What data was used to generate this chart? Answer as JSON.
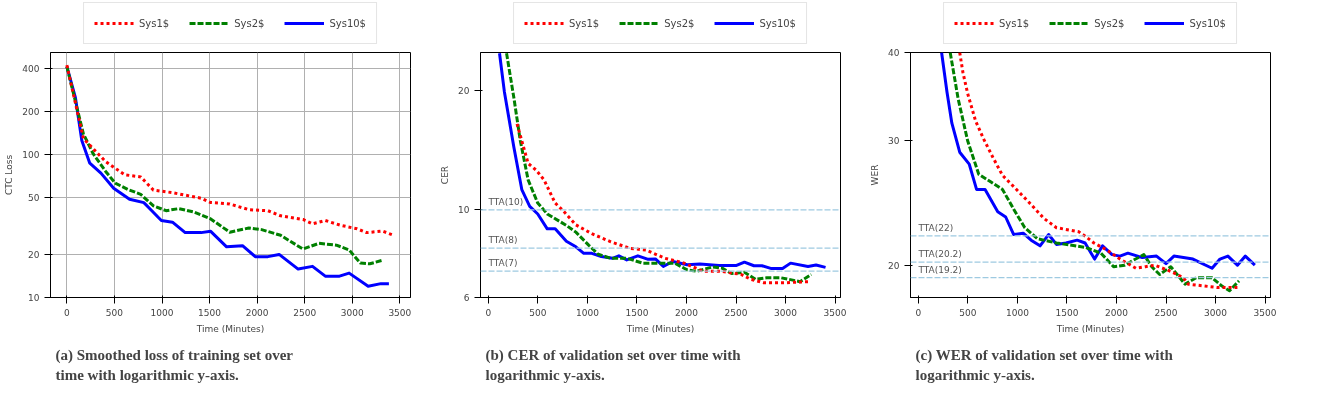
{
  "chart_data": [
    {
      "type": "line",
      "xlabel": "Time (Minutes)",
      "ylabel": "CTC Loss",
      "log": "y",
      "grid": true,
      "legend": "top",
      "xlim": [
        -172,
        3612
      ],
      "ylim": [
        10,
        515
      ],
      "xticks": [
        0,
        500,
        1000,
        1500,
        2000,
        2500,
        3000,
        3500
      ],
      "yticks": [
        10,
        20,
        50,
        100,
        200,
        400
      ],
      "annotations": [
        "(a) Smoothed loss of training set over time with logarithmic y-axis."
      ],
      "series": [
        {
          "name": "Sys1$",
          "color": "#ff0000",
          "line_style": "dotted",
          "x": [
            0,
            174,
            274,
            408,
            508,
            609,
            776,
            910,
            1110,
            1411,
            1512,
            1712,
            1913,
            2114,
            2247,
            2482,
            2582,
            2716,
            2883,
            3050,
            3150,
            3318,
            3435
          ],
          "values": [
            420,
            129,
            110,
            89,
            80,
            72,
            69.6,
            56.3,
            54.0,
            49.4,
            46.1,
            45,
            41.1,
            40.4,
            37.2,
            35.1,
            32.7,
            34.5,
            31.9,
            30.2,
            28.4,
            29.1,
            27.2
          ]
        },
        {
          "name": "Sys2$",
          "color": "#008000",
          "line_style": "dashed",
          "x": [
            0,
            174,
            274,
            408,
            508,
            642,
            776,
            910,
            1043,
            1177,
            1344,
            1512,
            1712,
            1913,
            2047,
            2247,
            2482,
            2649,
            2833,
            2967,
            3084,
            3184,
            3318
          ],
          "values": [
            410,
            139,
            101.6,
            76,
            63,
            56.9,
            52.6,
            43.7,
            40.4,
            41.8,
            39.4,
            35.4,
            28.6,
            30.6,
            29.8,
            27.2,
            21.8,
            23.9,
            23.2,
            21.5,
            17.4,
            17.2,
            18.2
          ]
        },
        {
          "name": "Sys10$",
          "color": "#0000ff",
          "line_style": "solid",
          "x": [
            0,
            90,
            157,
            241,
            358,
            492,
            659,
            809,
            893,
            993,
            1110,
            1244,
            1411,
            1512,
            1679,
            1846,
            1980,
            2114,
            2231,
            2431,
            2582,
            2716,
            2866,
            2967,
            3167,
            3301,
            3385
          ],
          "values": [
            410,
            249,
            125,
            86.7,
            74,
            58,
            48.6,
            46,
            40.4,
            34.5,
            33.6,
            28.4,
            28.4,
            29,
            22.6,
            23,
            19.3,
            19.3,
            20,
            15.8,
            16.5,
            14.1,
            14.1,
            14.8,
            12.0,
            12.5,
            12.5
          ]
        }
      ]
    },
    {
      "type": "line",
      "xlabel": "Time (Minutes)",
      "ylabel": "CER",
      "log": "y",
      "legend": "top",
      "xlim": [
        -80,
        3555
      ],
      "ylim": [
        6,
        25
      ],
      "xticks": [
        0,
        500,
        1000,
        1500,
        2000,
        2500,
        3000,
        3500
      ],
      "yticks": [
        6,
        10,
        20
      ],
      "annotations": [
        "(b) CER of validation set over time with logarithmic y-axis."
      ],
      "ref_lines": [
        {
          "axis": "y",
          "value": 10,
          "label": "TTA(10)",
          "color": "#9ecae1",
          "line_style": "dashed"
        },
        {
          "axis": "y",
          "value": 8,
          "label": "TTA(8)",
          "color": "#9ecae1",
          "line_style": "dashed"
        },
        {
          "axis": "y",
          "value": 7,
          "label": "TTA(7)",
          "color": "#9ecae1",
          "line_style": "dashed"
        }
      ],
      "series": [
        {
          "name": "Sys1$",
          "color": "#ff0000",
          "line_style": "dotted",
          "x": [
            289,
            401,
            482,
            562,
            674,
            755,
            883,
            1044,
            1236,
            1429,
            1590,
            1782,
            1975,
            2168,
            2360,
            2553,
            2649,
            2778,
            3003,
            3227
          ],
          "values": [
            16.5,
            13.1,
            12.6,
            11.9,
            10.4,
            9.94,
            9.16,
            8.7,
            8.3,
            7.99,
            7.91,
            7.54,
            7.33,
            6.99,
            6.99,
            6.86,
            6.67,
            6.54,
            6.54,
            6.58
          ]
        },
        {
          "name": "Sys2$",
          "color": "#008000",
          "line_style": "dashed",
          "x": [
            183,
            257,
            321,
            401,
            498,
            594,
            787,
            883,
            1012,
            1108,
            1236,
            1397,
            1557,
            1686,
            1879,
            2007,
            2103,
            2264,
            2360,
            2457,
            2585,
            2698,
            2810,
            2954,
            3035,
            3147,
            3260
          ],
          "values": [
            24.9,
            19.2,
            15.0,
            11.9,
            10.4,
            9.76,
            9.13,
            8.78,
            8.14,
            7.72,
            7.54,
            7.54,
            7.33,
            7.33,
            7.33,
            7.05,
            6.99,
            7.17,
            7.12,
            6.9,
            6.95,
            6.67,
            6.73,
            6.73,
            6.67,
            6.58,
            6.86
          ]
        },
        {
          "name": "Sys10$",
          "color": "#0000ff",
          "line_style": "solid",
          "x": [
            112,
            161,
            257,
            337,
            417,
            498,
            594,
            674,
            787,
            883,
            963,
            1044,
            1140,
            1252,
            1317,
            1397,
            1509,
            1606,
            1686,
            1766,
            1862,
            2007,
            2136,
            2328,
            2505,
            2585,
            2681,
            2762,
            2858,
            2970,
            3051,
            3227,
            3308,
            3404
          ],
          "values": [
            24.9,
            19.9,
            14.4,
            11.25,
            10.2,
            9.76,
            8.95,
            8.95,
            8.33,
            8.06,
            7.76,
            7.76,
            7.62,
            7.54,
            7.65,
            7.47,
            7.65,
            7.5,
            7.51,
            7.19,
            7.4,
            7.26,
            7.29,
            7.23,
            7.23,
            7.37,
            7.22,
            7.22,
            7.1,
            7.1,
            7.33,
            7.19,
            7.25,
            7.15
          ]
        }
      ]
    },
    {
      "type": "line",
      "xlabel": "Time (Minutes)",
      "ylabel": "WER",
      "log": "y",
      "legend": "top",
      "xlim": [
        -80,
        3555
      ],
      "ylim": [
        18,
        40
      ],
      "xticks": [
        0,
        500,
        1000,
        1500,
        2000,
        2500,
        3000,
        3500
      ],
      "yticks": [
        20,
        30,
        40
      ],
      "annotations": [
        "(c) WER of validation set over time with logarithmic y-axis."
      ],
      "ref_lines": [
        {
          "axis": "y",
          "value": 22,
          "label": "TTA(22)",
          "color": "#9ecae1",
          "line_style": "dashed"
        },
        {
          "axis": "y",
          "value": 20.2,
          "label": "TTA(20.2)",
          "color": "#9ecae1",
          "line_style": "dashed"
        },
        {
          "axis": "y",
          "value": 19.2,
          "label": "TTA(19.2)",
          "color": "#9ecae1",
          "line_style": "dashed"
        }
      ],
      "series": [
        {
          "name": "Sys1$",
          "color": "#ff0000",
          "line_style": "dotted",
          "x": [
            417,
            449,
            497,
            577,
            657,
            753,
            849,
            978,
            1122,
            1266,
            1394,
            1619,
            1699,
            1772,
            1907,
            2035,
            2196,
            2292,
            2388,
            2548,
            2676,
            2724,
            2869,
            3013,
            3125,
            3221
          ],
          "values": [
            40,
            37.5,
            35.0,
            32.0,
            30.2,
            28.4,
            26.8,
            25.7,
            24.5,
            23.3,
            22.6,
            22.3,
            21.9,
            21.5,
            21.0,
            20.4,
            19.8,
            19.9,
            20.0,
            19.6,
            19.2,
            18.8,
            18.7,
            18.6,
            18.6,
            18.6
          ]
        },
        {
          "name": "Sys2$",
          "color": "#008000",
          "line_style": "dashed",
          "x": [
            321,
            401,
            497,
            609,
            737,
            849,
            962,
            1074,
            1202,
            1394,
            1683,
            1843,
            1971,
            2083,
            2163,
            2276,
            2356,
            2436,
            2548,
            2692,
            2804,
            2965,
            3061,
            3141,
            3237
          ],
          "values": [
            40,
            34.4,
            30.0,
            26.9,
            26.2,
            25.6,
            24.0,
            22.6,
            21.8,
            21.5,
            21.2,
            20.8,
            19.9,
            20.0,
            20.3,
            20.7,
            19.9,
            19.4,
            19.9,
            18.8,
            19.2,
            19.2,
            18.7,
            18.4,
            19.0
          ]
        },
        {
          "name": "Sys10$",
          "color": "#0000ff",
          "line_style": "solid",
          "x": [
            234,
            288,
            337,
            417,
            513,
            587,
            673,
            801,
            881,
            962,
            1058,
            1138,
            1228,
            1314,
            1394,
            1490,
            1603,
            1683,
            1779,
            1859,
            1955,
            2035,
            2115,
            2260,
            2404,
            2500,
            2580,
            2772,
            2965,
            3045,
            3125,
            3221,
            3301,
            3397
          ],
          "values": [
            40,
            35.2,
            31.8,
            28.9,
            27.8,
            25.6,
            25.6,
            23.8,
            23.4,
            22.1,
            22.2,
            21.7,
            21.3,
            22.1,
            21.4,
            21.5,
            21.7,
            21.5,
            20.4,
            21.3,
            20.7,
            20.6,
            20.8,
            20.5,
            20.6,
            20.1,
            20.6,
            20.4,
            19.8,
            20.4,
            20.6,
            20.0,
            20.6,
            20.0
          ]
        }
      ]
    }
  ]
}
